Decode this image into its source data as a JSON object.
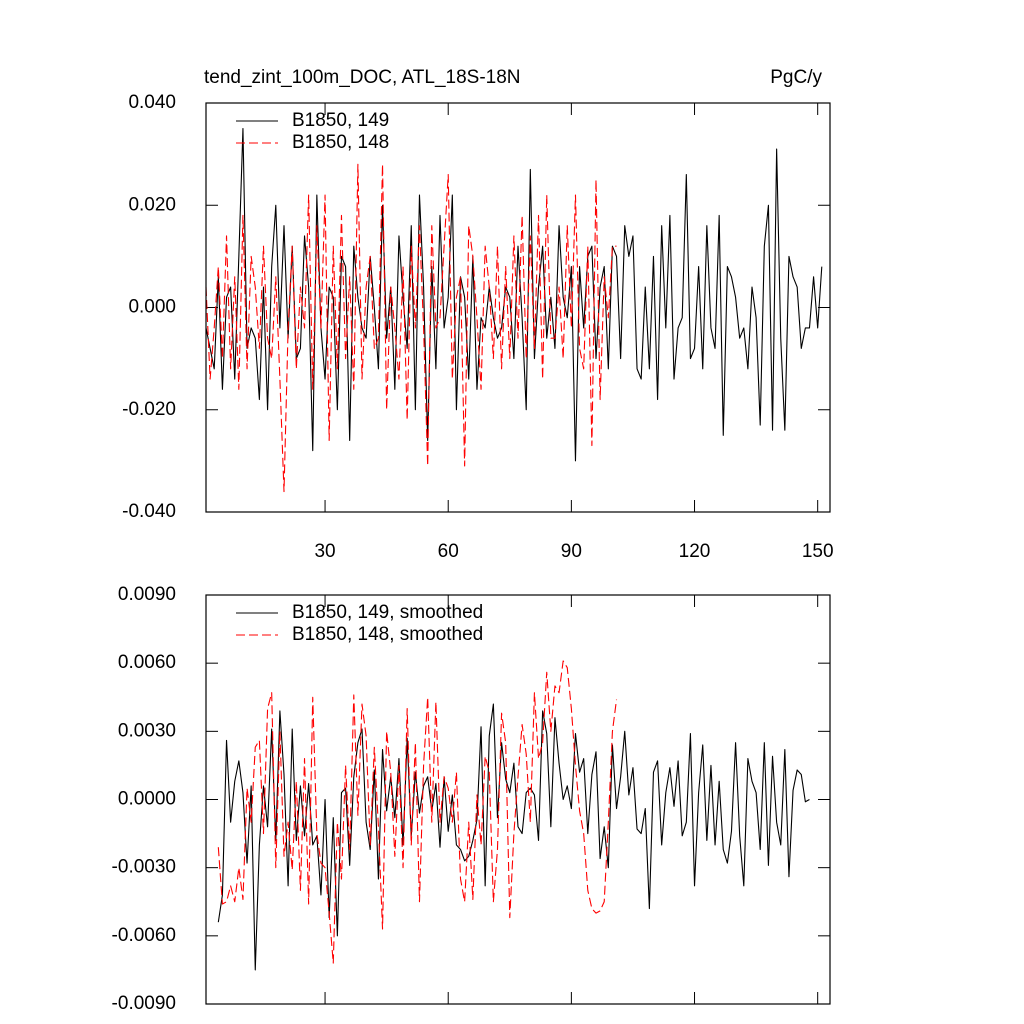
{
  "chart_data": [
    {
      "type": "line",
      "title": "tend_zint_100m_DOC, ATL_18S-18N",
      "units": "PgC/y",
      "x": [
        1,
        2,
        3,
        4,
        5,
        6,
        7,
        8,
        9,
        10,
        11,
        12,
        13,
        14,
        15,
        16,
        17,
        18,
        19,
        20,
        21,
        22,
        23,
        24,
        25,
        26,
        27,
        28,
        29,
        30,
        31,
        32,
        33,
        34,
        35,
        36,
        37,
        38,
        39,
        40,
        41,
        42,
        43,
        44,
        45,
        46,
        47,
        48,
        49,
        50,
        51,
        52,
        53,
        54,
        55,
        56,
        57,
        58,
        59,
        60,
        61,
        62,
        63,
        64,
        65,
        66,
        67,
        68,
        69,
        70,
        71,
        72,
        73,
        74,
        75,
        76,
        77,
        78,
        79,
        80,
        81,
        82,
        83,
        84,
        85,
        86,
        87,
        88,
        89,
        90,
        91,
        92,
        93,
        94,
        95,
        96,
        97,
        98,
        99,
        100,
        101,
        102,
        103,
        104,
        105,
        106,
        107,
        108,
        109,
        110,
        111,
        112,
        113,
        114,
        115,
        116,
        117,
        118,
        119,
        120,
        121,
        122,
        123,
        124,
        125,
        126,
        127,
        128,
        129,
        130,
        131,
        132,
        133,
        134,
        135,
        136,
        137,
        138,
        139,
        140,
        141,
        142,
        143,
        144,
        145,
        146,
        147,
        148,
        149,
        150,
        151
      ],
      "series": [
        {
          "name": "B1850, 149",
          "color": "#000000",
          "dash": false,
          "values": [
            -0.004,
            -0.008,
            -0.012,
            0.006,
            -0.016,
            0.002,
            0.004,
            -0.014,
            0.01,
            0.035,
            -0.008,
            -0.004,
            -0.006,
            -0.018,
            0.004,
            -0.02,
            0.008,
            0.02,
            -0.004,
            0.016,
            -0.006,
            0.012,
            -0.01,
            -0.008,
            0.014,
            0.004,
            -0.028,
            0.022,
            -0.004,
            -0.014,
            0.004,
            0.002,
            -0.02,
            0.01,
            0.008,
            -0.026,
            0.012,
            0.002,
            -0.004,
            -0.006,
            0.01,
            0.0,
            -0.012,
            0.02,
            -0.006,
            0.004,
            -0.016,
            0.014,
            0.002,
            -0.008,
            0.016,
            -0.02,
            0.022,
            0.004,
            -0.026,
            0.008,
            -0.012,
            0.018,
            -0.004,
            0.002,
            0.022,
            -0.02,
            0.006,
            0.002,
            -0.014,
            0.01,
            -0.016,
            -0.002,
            -0.004,
            0.004,
            -0.002,
            -0.006,
            -0.004,
            0.004,
            0.002,
            -0.01,
            0.012,
            -0.002,
            -0.02,
            0.027,
            -0.01,
            0.004,
            0.012,
            -0.006,
            0.002,
            -0.008,
            0.016,
            0.002,
            -0.002,
            0.008,
            -0.03,
            0.008,
            -0.004,
            0.01,
            0.012,
            -0.01,
            0.004,
            0.008,
            -0.012,
            0.012,
            0.01,
            -0.01,
            0.016,
            0.01,
            0.014,
            -0.012,
            -0.014,
            0.004,
            -0.012,
            0.01,
            -0.018,
            0.016,
            -0.004,
            0.018,
            -0.014,
            -0.004,
            -0.002,
            0.026,
            -0.01,
            -0.008,
            0.008,
            -0.012,
            0.016,
            -0.004,
            -0.008,
            0.018,
            -0.025,
            0.008,
            0.006,
            0.002,
            -0.006,
            -0.004,
            -0.012,
            0.004,
            -0.002,
            -0.023,
            0.012,
            0.02,
            -0.024,
            0.031,
            -0.006,
            -0.024,
            0.01,
            0.006,
            0.004,
            -0.008,
            -0.004,
            -0.004,
            0.006,
            -0.004,
            0.008
          ]
        },
        {
          "name": "B1850, 148",
          "color": "#ff0000",
          "dash": true,
          "values": [
            0.004,
            -0.014,
            -0.004,
            0.008,
            -0.01,
            0.014,
            -0.012,
            0.006,
            -0.016,
            0.018,
            -0.012,
            0.01,
            0.004,
            -0.008,
            0.012,
            -0.006,
            -0.01,
            0.006,
            -0.014,
            -0.036,
            -0.004,
            0.012,
            -0.012,
            0.004,
            -0.004,
            0.022,
            -0.016,
            0.016,
            -0.004,
            0.022,
            -0.026,
            0.012,
            -0.012,
            0.018,
            -0.01,
            0.006,
            -0.016,
            0.028,
            -0.014,
            0.004,
            0.01,
            -0.008,
            -0.006,
            0.028,
            -0.02,
            0.004,
            -0.004,
            -0.014,
            0.008,
            -0.022,
            0.012,
            -0.004,
            0.016,
            -0.004,
            -0.031,
            0.016,
            -0.004,
            -0.002,
            0.012,
            0.026,
            -0.014,
            0.002,
            0.006,
            -0.031,
            0.016,
            0.01,
            -0.002,
            -0.016,
            0.012,
            0.004,
            -0.01,
            0.012,
            -0.012,
            0.008,
            -0.01,
            0.014,
            -0.006,
            0.018,
            -0.01,
            0.014,
            -0.008,
            0.018,
            -0.014,
            0.022,
            -0.006,
            -0.006,
            0.004,
            -0.01,
            0.016,
            -0.004,
            0.022,
            -0.008,
            -0.012,
            0.012,
            -0.027,
            0.025,
            -0.018,
            0.006,
            -0.002,
            0.012,
            0.012,
            null,
            null,
            null,
            null,
            null,
            null,
            null,
            null,
            null,
            null,
            null,
            null,
            null,
            null,
            null,
            null,
            null,
            null,
            null,
            null,
            null,
            null,
            null,
            null,
            null,
            null,
            null,
            null,
            null,
            null,
            null,
            null,
            null,
            null,
            null,
            null,
            null,
            null,
            null,
            null,
            null,
            null,
            null,
            null,
            null,
            null,
            null,
            null,
            null,
            null
          ]
        }
      ],
      "xlim": [
        1,
        153
      ],
      "ylim": [
        -0.04,
        0.04
      ],
      "xticks": [
        30,
        60,
        90,
        120,
        150
      ],
      "yticks": [
        {
          "value": -0.04,
          "label": "-0.040"
        },
        {
          "value": -0.02,
          "label": "-0.020"
        },
        {
          "value": 0,
          "label": "0.000"
        },
        {
          "value": 0.02,
          "label": "0.020"
        },
        {
          "value": 0.04,
          "label": "0.040"
        }
      ],
      "xticklabels": true,
      "legend": "upper left"
    },
    {
      "type": "line",
      "x": [
        1,
        2,
        3,
        4,
        5,
        6,
        7,
        8,
        9,
        10,
        11,
        12,
        13,
        14,
        15,
        16,
        17,
        18,
        19,
        20,
        21,
        22,
        23,
        24,
        25,
        26,
        27,
        28,
        29,
        30,
        31,
        32,
        33,
        34,
        35,
        36,
        37,
        38,
        39,
        40,
        41,
        42,
        43,
        44,
        45,
        46,
        47,
        48,
        49,
        50,
        51,
        52,
        53,
        54,
        55,
        56,
        57,
        58,
        59,
        60,
        61,
        62,
        63,
        64,
        65,
        66,
        67,
        68,
        69,
        70,
        71,
        72,
        73,
        74,
        75,
        76,
        77,
        78,
        79,
        80,
        81,
        82,
        83,
        84,
        85,
        86,
        87,
        88,
        89,
        90,
        91,
        92,
        93,
        94,
        95,
        96,
        97,
        98,
        99,
        100,
        101,
        102,
        103,
        104,
        105,
        106,
        107,
        108,
        109,
        110,
        111,
        112,
        113,
        114,
        115,
        116,
        117,
        118,
        119,
        120,
        121,
        122,
        123,
        124,
        125,
        126,
        127,
        128,
        129,
        130,
        131,
        132,
        133,
        134,
        135,
        136,
        137,
        138,
        139,
        140,
        141,
        142,
        143,
        144,
        145,
        146,
        147,
        148,
        149,
        150,
        151
      ],
      "series": [
        {
          "name": "B1850, 149, smoothed",
          "color": "#000000",
          "dash": false,
          "values": [
            null,
            null,
            null,
            -0.0054,
            -0.0042,
            0.0026,
            -0.001,
            0.0008,
            0.0017,
            0.0003,
            -0.0028,
            0.0006,
            -0.0075,
            -0.002,
            0.0006,
            -0.0012,
            0.0031,
            -0.0018,
            0.0039,
            0.0011,
            -0.0038,
            0.0031,
            -0.0018,
            0.0006,
            -0.0016,
            0.0007,
            -0.002,
            -0.0016,
            -0.0042,
            0.0,
            -0.0052,
            -0.0008,
            -0.006,
            0.0003,
            0.0005,
            -0.0029,
            0.001,
            0.0025,
            0.0031,
            -0.001,
            -0.0022,
            0.0013,
            -0.0035,
            0.0022,
            -0.0005,
            0.001,
            -0.0008,
            0.0018,
            -0.002,
            0.0027,
            -0.0016,
            0.0012,
            -0.0006,
            0.0006,
            0.001,
            -0.0005,
            0.0007,
            -0.0021,
            0.001,
            -0.0014,
            0.0002,
            -0.002,
            -0.0022,
            -0.0027,
            -0.0025,
            -0.0018,
            -0.0009,
            0.0032,
            -0.0038,
            0.0028,
            0.0042,
            -0.0008,
            0.0025,
            0.0009,
            0.0003,
            0.0016,
            -0.0012,
            -0.0015,
            0.0003,
            0.0005,
            0.0002,
            -0.0018,
            0.0039,
            0.0029,
            -0.0012,
            0.0036,
            0.0016,
            0.0,
            0.0006,
            -0.0004,
            0.0029,
            0.0012,
            0.0018,
            -0.0015,
            0.0011,
            0.0021,
            -0.0026,
            -0.0012,
            -0.003,
            0.0024,
            -0.0004,
            0.001,
            0.003,
            0.0002,
            0.0014,
            -0.0013,
            -0.0015,
            -0.0004,
            -0.0048,
            0.0012,
            0.0017,
            -0.002,
            0.0003,
            0.0014,
            -0.0003,
            0.0017,
            -0.0016,
            -0.001,
            0.0029,
            -0.0038,
            0.0003,
            0.0024,
            -0.0018,
            0.0015,
            -0.002,
            0.0008,
            -0.0022,
            -0.0028,
            -0.0014,
            0.0025,
            -0.0016,
            -0.0038,
            0.0018,
            0.0008,
            0.0003,
            -0.0022,
            0.0025,
            -0.0029,
            0.0019,
            -0.001,
            -0.002,
            0.0022,
            -0.0034,
            0.0004,
            0.0013,
            0.0011,
            -0.0001,
            0.0,
            null,
            null,
            null
          ]
        },
        {
          "name": "B1850, 148, smoothed",
          "color": "#ff0000",
          "dash": true,
          "values": [
            null,
            null,
            null,
            -0.0021,
            -0.0046,
            -0.0045,
            -0.0038,
            -0.0045,
            -0.003,
            -0.0044,
            0.0005,
            -0.001,
            0.0023,
            0.0026,
            -0.0015,
            0.004,
            0.0047,
            -0.003,
            0.003,
            -0.0025,
            -0.001,
            -0.0031,
            0.0008,
            -0.004,
            0.0018,
            -0.0046,
            0.0045,
            -0.0015,
            -0.0028,
            -0.003,
            -0.005,
            -0.0072,
            -0.001,
            -0.0035,
            0.0015,
            -0.0022,
            0.0046,
            -0.0007,
            0.0042,
            0.0028,
            -0.002,
            0.0023,
            -0.0012,
            -0.0057,
            0.003,
            0.0012,
            -0.0025,
            0.0015,
            -0.003,
            0.004,
            -0.002,
            0.0025,
            -0.0045,
            0.0015,
            0.0045,
            -0.001,
            0.0043,
            -0.001,
            0.001,
            0.0005,
            -0.001,
            0.0012,
            -0.0035,
            -0.0045,
            -0.001,
            -0.0044,
            0.0002,
            -0.002,
            0.0019,
            0.0012,
            -0.0045,
            -0.0022,
            0.0038,
            0.0025,
            -0.0052,
            -0.0015,
            0.001,
            0.0033,
            0.002,
            -0.001,
            0.0047,
            0.0018,
            0.0025,
            0.0056,
            0.003,
            0.005,
            0.0047,
            0.0061,
            0.0058,
            0.004,
            0.0015,
            -0.0005,
            -0.0015,
            -0.004,
            -0.0048,
            -0.005,
            -0.0049,
            -0.0045,
            -0.001,
            0.003,
            0.0044,
            null,
            null,
            null,
            null,
            null,
            null,
            null,
            null,
            null,
            null,
            null,
            null,
            null,
            null,
            null,
            null,
            null,
            null,
            null,
            null,
            null,
            null,
            null,
            null,
            null,
            null,
            null,
            null,
            null,
            null,
            null,
            null,
            null,
            null,
            null,
            null,
            null,
            null,
            null,
            null,
            null,
            null,
            null,
            null,
            null,
            null,
            null,
            null,
            null,
            null
          ]
        }
      ],
      "xlim": [
        1,
        153
      ],
      "ylim": [
        -0.009,
        0.009
      ],
      "xticks": [
        30,
        60,
        90,
        120,
        150
      ],
      "yticks": [
        {
          "value": -0.009,
          "label": "-0.0090"
        },
        {
          "value": -0.006,
          "label": "-0.0060"
        },
        {
          "value": -0.003,
          "label": "-0.0030"
        },
        {
          "value": 0,
          "label": "0.0000"
        },
        {
          "value": 0.003,
          "label": "0.0030"
        },
        {
          "value": 0.006,
          "label": "0.0060"
        },
        {
          "value": 0.009,
          "label": "0.0090"
        }
      ],
      "xticklabels": false,
      "legend": "upper left"
    }
  ]
}
